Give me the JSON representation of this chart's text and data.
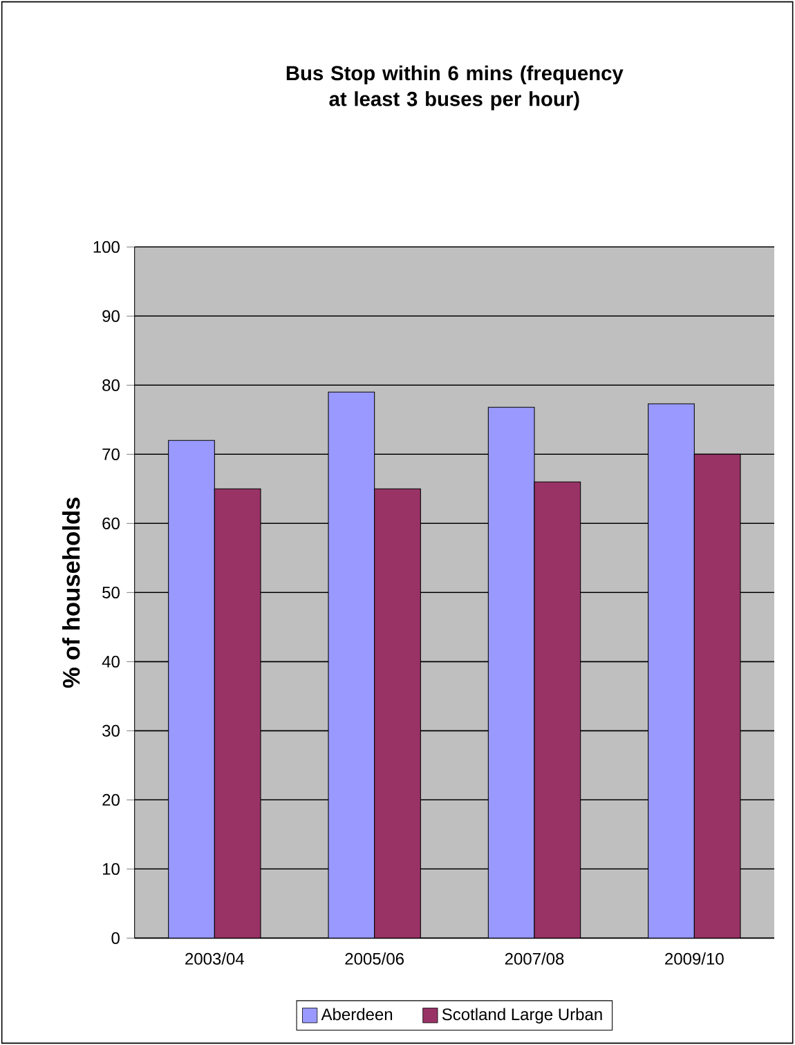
{
  "chart_data": {
    "type": "bar",
    "title": "Bus Stop within 6 mins (frequency at least 3 buses per hour)",
    "ylabel": "% of households",
    "categories": [
      "2003/04",
      "2005/06",
      "2007/08",
      "2009/10"
    ],
    "series": [
      {
        "name": "Aberdeen",
        "color": "#9999ff",
        "values": [
          72,
          79,
          76.8,
          77.3
        ]
      },
      {
        "name": "Scotland Large Urban",
        "color": "#993366",
        "values": [
          65,
          65,
          66,
          70
        ]
      }
    ],
    "ylim": [
      0,
      100
    ],
    "yticks": [
      0,
      10,
      20,
      30,
      40,
      50,
      60,
      70,
      80,
      90,
      100
    ],
    "grid": "y",
    "legend": "bottom"
  }
}
